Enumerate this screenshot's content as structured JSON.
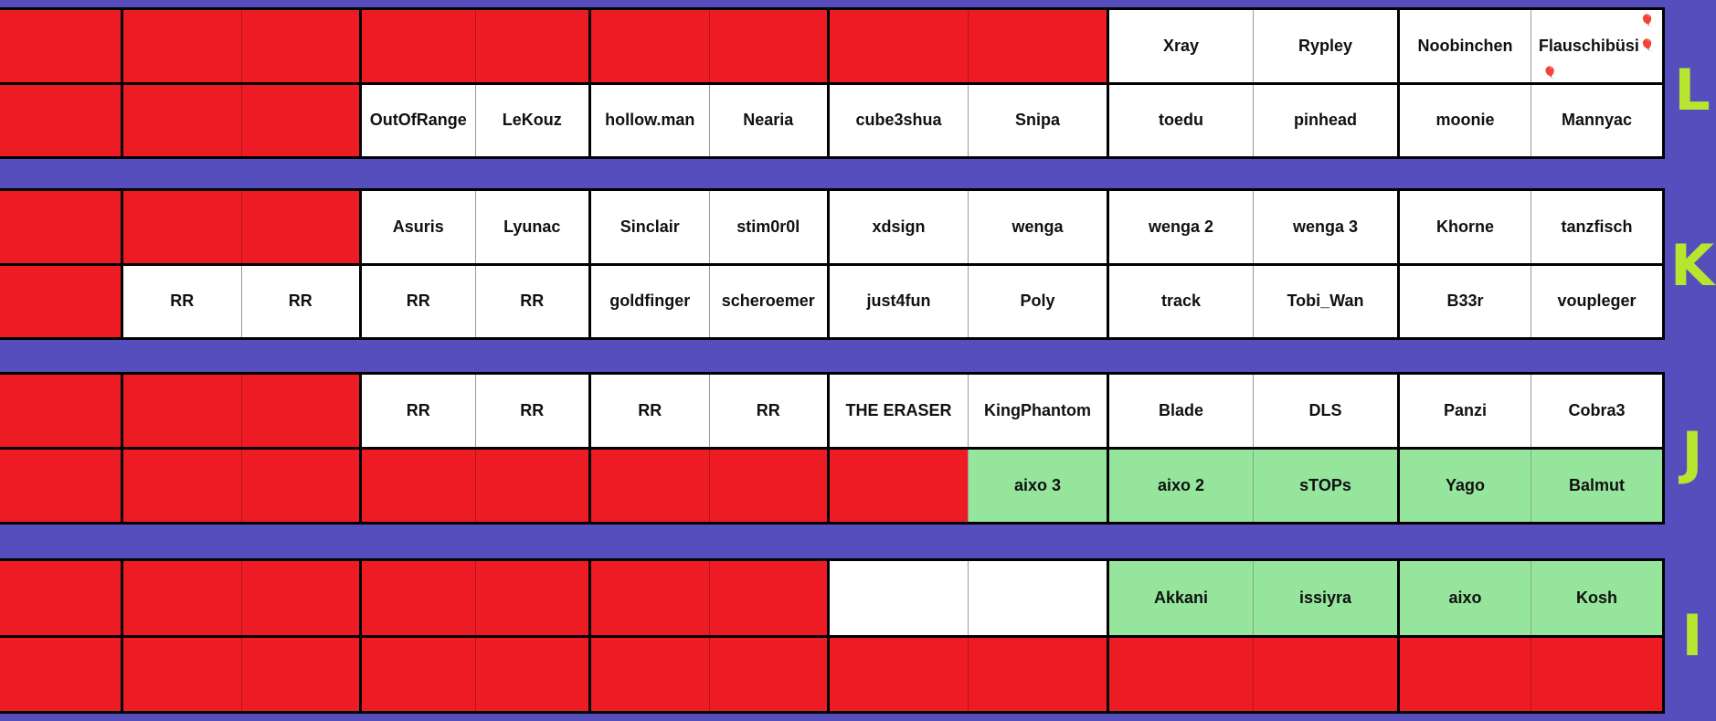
{
  "rows": {
    "L": {
      "label": "L",
      "top": [
        "",
        "",
        "",
        "",
        "",
        "",
        "",
        "",
        "",
        "Xray",
        "Rypley",
        "Noobinchen",
        "Flauschibüsi"
      ],
      "bottom": [
        "",
        "",
        "",
        "OutOfRange",
        "LeKouz",
        "hollow.man",
        "Nearia",
        "cube3shua",
        "Snipa",
        "toedu",
        "pinhead",
        "moonie",
        "Mannyac"
      ]
    },
    "K": {
      "label": "K",
      "top": [
        "",
        "",
        "",
        "Asuris",
        "Lyunac",
        "Sinclair",
        "stim0r0l",
        "xdsign",
        "wenga",
        "wenga 2",
        "wenga 3",
        "Khorne",
        "tanzfisch"
      ],
      "bottom": [
        "",
        "RR",
        "RR",
        "RR",
        "RR",
        "goldfinger",
        "scheroemer",
        "just4fun",
        "Poly",
        "track",
        "Tobi_Wan",
        "B33r",
        "voupleger"
      ]
    },
    "J": {
      "label": "J",
      "top": [
        "",
        "",
        "",
        "RR",
        "RR",
        "RR",
        "RR",
        "THE ERASER",
        "KingPhantom",
        "Blade",
        "DLS",
        "Panzi",
        "Cobra3"
      ],
      "bottom": [
        "",
        "",
        "",
        "",
        "",
        "",
        "",
        "",
        "aixo 3",
        "aixo 2",
        "sTOPs",
        "Yago",
        "Balmut"
      ]
    },
    "I": {
      "label": "I",
      "top": [
        "",
        "",
        "",
        "",
        "",
        "",
        "",
        "",
        "",
        "Akkani",
        "issiyra",
        "aixo",
        "Kosh"
      ],
      "bottom": [
        "",
        "",
        "",
        "",
        "",
        "",
        "",
        "",
        "",
        "",
        "",
        "",
        ""
      ]
    }
  },
  "colors": {
    "background": "#574ebe",
    "taken": "#ed1c24",
    "free": "#ffffff",
    "reserved": "#96e59c",
    "letter": "#b7e62e"
  },
  "icons": {
    "balloon": "balloon-icon"
  }
}
